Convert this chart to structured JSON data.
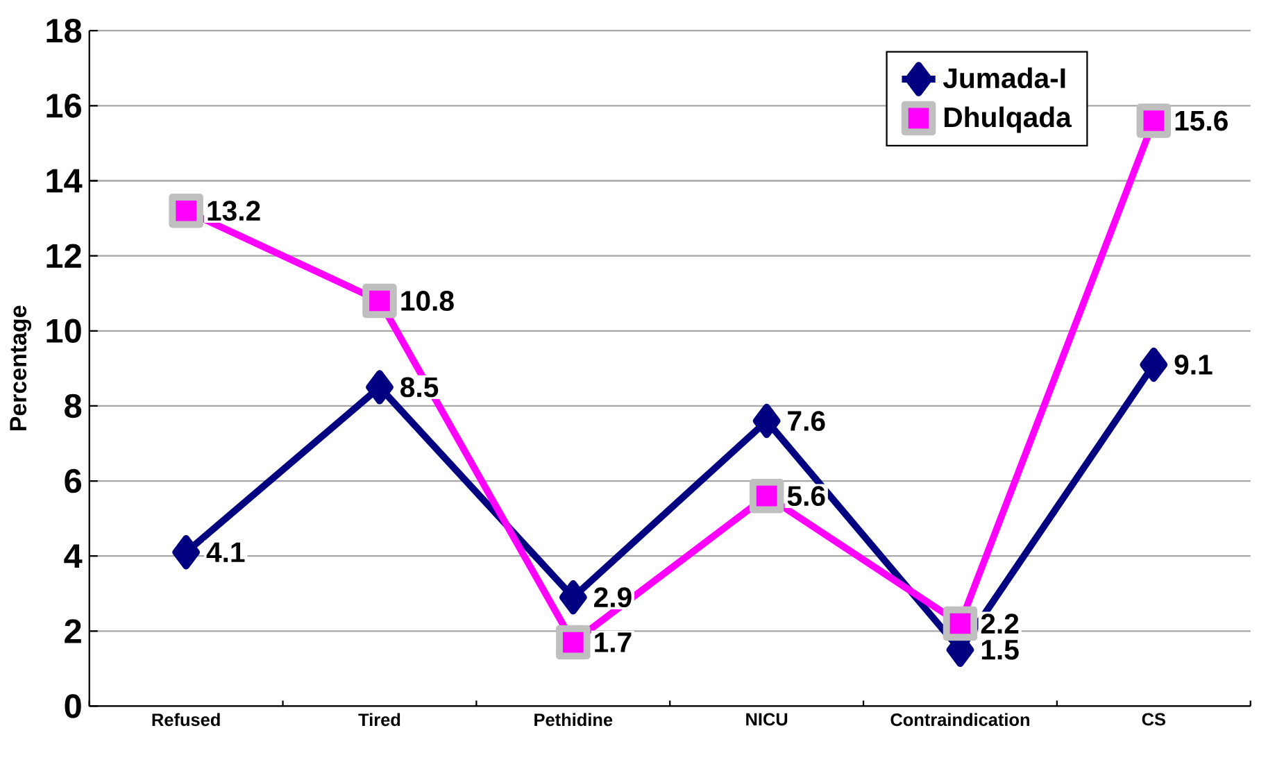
{
  "chart_data": {
    "type": "line",
    "ylabel": "Percentage",
    "categories": [
      "Refused",
      "Tired",
      "Pethidine",
      "NICU",
      "Contraindication",
      "CS"
    ],
    "series": [
      {
        "name": "Jumada-I",
        "color": "#000080",
        "marker": "diamond",
        "values": [
          4.1,
          8.5,
          2.9,
          7.6,
          1.5,
          9.1
        ]
      },
      {
        "name": "Dhulqada",
        "color": "#ff00ff",
        "marker": "square",
        "values": [
          13.2,
          10.8,
          1.7,
          5.6,
          2.2,
          15.6
        ]
      }
    ],
    "ylim": [
      0,
      18
    ],
    "yticks": [
      0,
      2,
      4,
      6,
      8,
      10,
      12,
      14,
      16,
      18
    ],
    "grid": "y",
    "legend": "top right",
    "data_labels": true
  }
}
